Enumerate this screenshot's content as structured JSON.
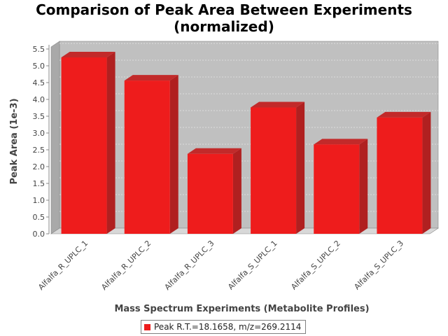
{
  "chart_data": {
    "type": "bar",
    "title_line1": "Comparison of Peak Area Between Experiments",
    "title_line2": "(normalized)",
    "xlabel": "Mass Spectrum Experiments (Metabolite Profiles)",
    "ylabel": "Peak Area (1e-3)",
    "categories": [
      "Alfalfa_R_UPLC_1",
      "Alfalfa_R_UPLC_2",
      "Alfalfa_R_UPLC_3",
      "Alfalfa_S_UPLC_1",
      "Alfalfa_S_UPLC_2",
      "Alfalfa_S_UPLC_3"
    ],
    "series": [
      {
        "name": "Peak R.T.=18.1658, m/z=269.2114",
        "values": [
          5.25,
          4.56,
          2.38,
          3.76,
          2.66,
          3.46
        ],
        "color": "#ee1c1c"
      }
    ],
    "ylim": [
      0,
      5.5
    ],
    "yticks": [
      "0.0",
      "0.5",
      "1.0",
      "1.5",
      "2.0",
      "2.5",
      "3.0",
      "3.5",
      "4.0",
      "4.5",
      "5.0",
      "5.5"
    ],
    "grid": true,
    "legend_position": "bottom",
    "colors": {
      "plot_background": "#c0c0c0",
      "gridline": "#e6e6e6",
      "bar_front": "#ee1c1c",
      "bar_top": "#c22a2a",
      "bar_side": "#b02020"
    }
  }
}
